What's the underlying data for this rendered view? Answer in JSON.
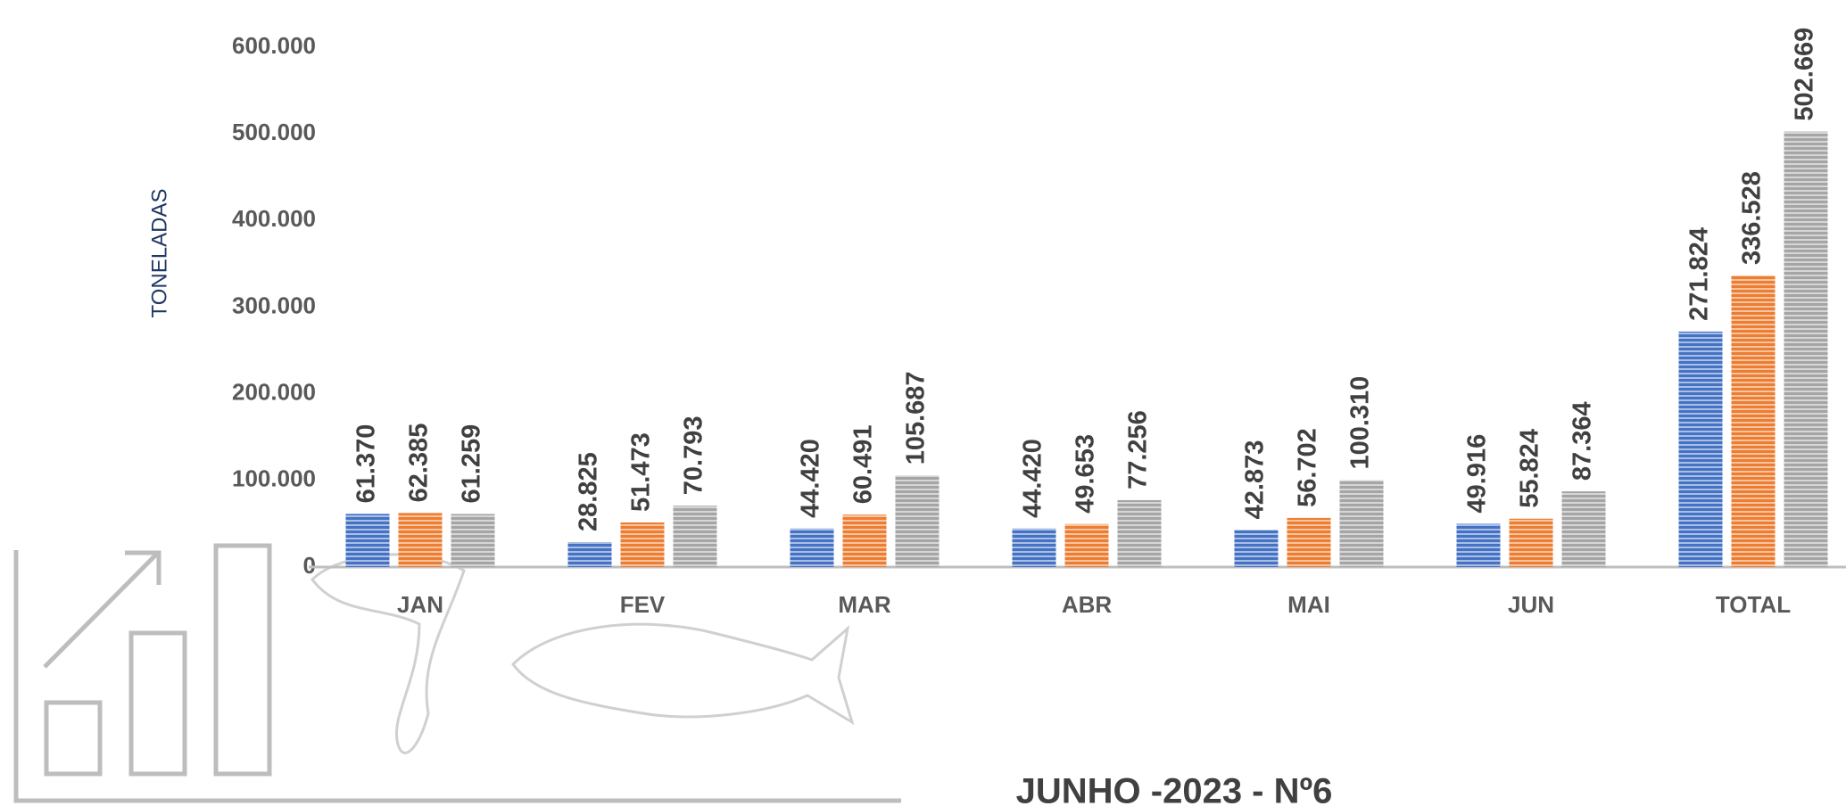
{
  "chart_data": {
    "type": "bar",
    "y_label": "TONELADAS",
    "footer": "JUNHO -2023 - Nº6",
    "categories": [
      "JAN",
      "FEV",
      "MAR",
      "ABR",
      "MAI",
      "JUN",
      "TOTAL"
    ],
    "series": [
      {
        "color": "#4472c4",
        "values": [
          61370,
          28825,
          44420,
          44420,
          42873,
          49916,
          271824
        ],
        "value_labels": [
          "61.370",
          "28.825",
          "44.420",
          "44.420",
          "42.873",
          "49.916",
          "271.824"
        ]
      },
      {
        "color": "#ed7d31",
        "values": [
          62385,
          51473,
          60491,
          49653,
          56702,
          55824,
          336528
        ],
        "value_labels": [
          "62.385",
          "51.473",
          "60.491",
          "49.653",
          "56.702",
          "55.824",
          "336.528"
        ]
      },
      {
        "color": "#a5a5a5",
        "values": [
          61259,
          70793,
          105687,
          77256,
          100310,
          87364,
          502669
        ],
        "value_labels": [
          "61.259",
          "70.793",
          "105.687",
          "77.256",
          "100.310",
          "87.364",
          "502.669"
        ]
      }
    ],
    "ylim": [
      0,
      600000
    ],
    "yticks": [
      0,
      {
        "value": 100000,
        "label": "100.000"
      },
      {
        "value": 200000,
        "label": "200.000"
      },
      {
        "value": 300000,
        "label": "300.000"
      },
      {
        "value": 400000,
        "label": "400.000"
      },
      {
        "value": 500000,
        "label": "500.000"
      },
      {
        "value": 600000,
        "label": "600.000"
      }
    ]
  }
}
